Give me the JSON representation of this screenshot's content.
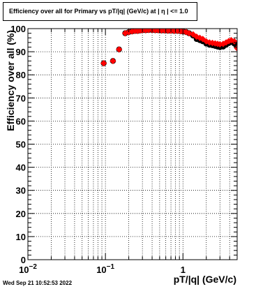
{
  "header": {
    "title": "Efficiency over all for Primary vs pT/|q| (GeV/c) at |  η | <= 1.0"
  },
  "footer": {
    "timestamp": "Wed Sep 21 10:52:53 2022"
  },
  "colors": {
    "series_primary": "#ff0000",
    "series_reference": "#000000",
    "grid": "#000000",
    "frame": "#000000"
  },
  "chart_data": {
    "type": "scatter",
    "title": "Efficiency over all for Primary vs pT/|q| (GeV/c) at |  η | <= 1.0",
    "xlabel": "pT/|q| (GeV/c)",
    "ylabel": "Efficiency over all (%)",
    "x_scale": "log",
    "xlim": [
      0.01,
      5.0
    ],
    "ylim": [
      0,
      100
    ],
    "x_ticks": [
      {
        "value": 0.01,
        "base": "10",
        "exp": "−2"
      },
      {
        "value": 0.1,
        "base": "10",
        "exp": "−1"
      },
      {
        "value": 1,
        "base": "1",
        "exp": ""
      }
    ],
    "y_ticks": [
      "0",
      "10",
      "20",
      "30",
      "40",
      "50",
      "60",
      "70",
      "80",
      "90",
      "100"
    ],
    "grid": true,
    "legend": "none",
    "series": [
      {
        "color": "#000000",
        "marker": "circle",
        "x": [
          0.095,
          0.125,
          0.15,
          0.18,
          0.2,
          0.22,
          0.24,
          0.26,
          0.28,
          0.3,
          0.33,
          0.36,
          0.4,
          0.44,
          0.48,
          0.53,
          0.58,
          0.64,
          0.7,
          0.77,
          0.85,
          0.93,
          1.0,
          1.1,
          1.2,
          1.35,
          1.5,
          1.65,
          1.8,
          2.0,
          2.2,
          2.4,
          2.6,
          2.8,
          3.0,
          3.3,
          3.6,
          3.9,
          4.2,
          4.6,
          5.0
        ],
        "y": [
          85,
          86,
          91,
          98,
          98.5,
          98.8,
          99,
          99,
          99.2,
          99.3,
          99.3,
          99.4,
          99.4,
          99.3,
          99.3,
          99.2,
          99.2,
          99.1,
          99.1,
          99.0,
          99.0,
          98.9,
          98.8,
          98.5,
          98,
          97,
          95.5,
          95,
          94.5,
          93.5,
          93,
          92.8,
          92.5,
          92.2,
          92,
          92.2,
          93,
          93.8,
          94.2,
          93.5,
          92
        ]
      },
      {
        "color": "#ff0000",
        "marker": "diamond",
        "x": [
          0.095,
          0.125,
          0.15,
          0.18,
          0.2,
          0.22,
          0.24,
          0.26,
          0.28,
          0.3,
          0.33,
          0.36,
          0.4,
          0.44,
          0.48,
          0.53,
          0.58,
          0.64,
          0.7,
          0.77,
          0.85,
          0.93,
          1.0,
          1.1,
          1.2,
          1.35,
          1.5,
          1.65,
          1.8,
          2.0,
          2.2,
          2.4,
          2.6,
          2.8,
          3.0,
          3.3,
          3.6,
          3.9,
          4.2,
          4.6,
          5.0
        ],
        "y": [
          85,
          86,
          91,
          98,
          98.5,
          98.8,
          99,
          99,
          99.2,
          99.3,
          99.3,
          99.4,
          99.4,
          99.3,
          99.3,
          99.2,
          99.2,
          99.1,
          99.1,
          99.0,
          99.0,
          98.9,
          98.8,
          98.5,
          98,
          97.5,
          96.5,
          96,
          95.5,
          94.5,
          94,
          93.8,
          93.6,
          93.4,
          93.2,
          93.4,
          94,
          94.6,
          95,
          94.5,
          91.5
        ]
      }
    ]
  }
}
